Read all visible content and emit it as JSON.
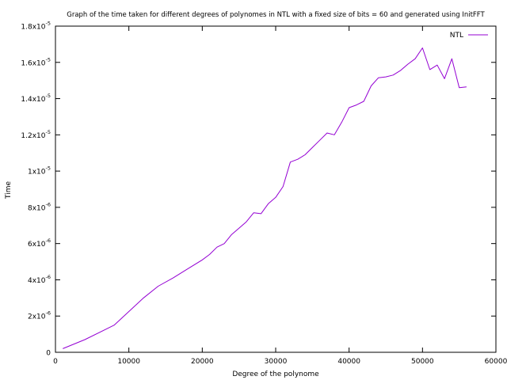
{
  "chart_data": {
    "type": "line",
    "title": "Graph of the time taken for different degrees of polynomes in NTL with a fixed size of bits = 60 and generated using InitFFT",
    "xlabel": "Degree of the polynome",
    "ylabel": "Time",
    "xlim": [
      0,
      60000
    ],
    "ylim": [
      0,
      1.8e-05
    ],
    "x_ticks": [
      "0",
      "10000",
      "20000",
      "30000",
      "40000",
      "50000",
      "60000"
    ],
    "y_ticks": [
      {
        "value": 0,
        "mantissa": "0",
        "exp": ""
      },
      {
        "value": 2e-06,
        "mantissa": "2x10",
        "exp": "-6"
      },
      {
        "value": 4e-06,
        "mantissa": "4x10",
        "exp": "-6"
      },
      {
        "value": 6e-06,
        "mantissa": "6x10",
        "exp": "-6"
      },
      {
        "value": 8e-06,
        "mantissa": "8x10",
        "exp": "-6"
      },
      {
        "value": 1e-05,
        "mantissa": "1x10",
        "exp": "-5"
      },
      {
        "value": 1.2e-05,
        "mantissa": "1.2x10",
        "exp": "-5"
      },
      {
        "value": 1.4e-05,
        "mantissa": "1.4x10",
        "exp": "-5"
      },
      {
        "value": 1.6e-05,
        "mantissa": "1.6x10",
        "exp": "-5"
      },
      {
        "value": 1.8e-05,
        "mantissa": "1.8x10",
        "exp": "-5"
      }
    ],
    "grid": false,
    "legend_position": "top-right",
    "series": [
      {
        "name": "NTL",
        "color": "#9400d3",
        "x": [
          1000,
          4000,
          8000,
          12000,
          14000,
          16000,
          18000,
          20000,
          21000,
          22000,
          23000,
          24000,
          25000,
          26000,
          27000,
          28000,
          29000,
          30000,
          31000,
          32000,
          33000,
          34000,
          35000,
          36000,
          37000,
          38000,
          39000,
          40000,
          41000,
          42000,
          43000,
          44000,
          45000,
          46000,
          47000,
          48000,
          49000,
          50000,
          51000,
          52000,
          53000,
          54000,
          55000,
          56000
        ],
        "values": [
          2e-07,
          7e-07,
          1.5e-06,
          3e-06,
          3.65e-06,
          4.1e-06,
          4.6e-06,
          5.1e-06,
          5.4e-06,
          5.8e-06,
          6e-06,
          6.5e-06,
          6.85e-06,
          7.2e-06,
          7.7e-06,
          7.65e-06,
          8.2e-06,
          8.55e-06,
          9.15e-06,
          1.05e-05,
          1.065e-05,
          1.09e-05,
          1.13e-05,
          1.17e-05,
          1.21e-05,
          1.2e-05,
          1.27e-05,
          1.35e-05,
          1.365e-05,
          1.385e-05,
          1.47e-05,
          1.515e-05,
          1.52e-05,
          1.53e-05,
          1.555e-05,
          1.59e-05,
          1.62e-05,
          1.68e-05,
          1.56e-05,
          1.585e-05,
          1.51e-05,
          1.62e-05,
          1.46e-05,
          1.465e-05
        ]
      }
    ]
  }
}
